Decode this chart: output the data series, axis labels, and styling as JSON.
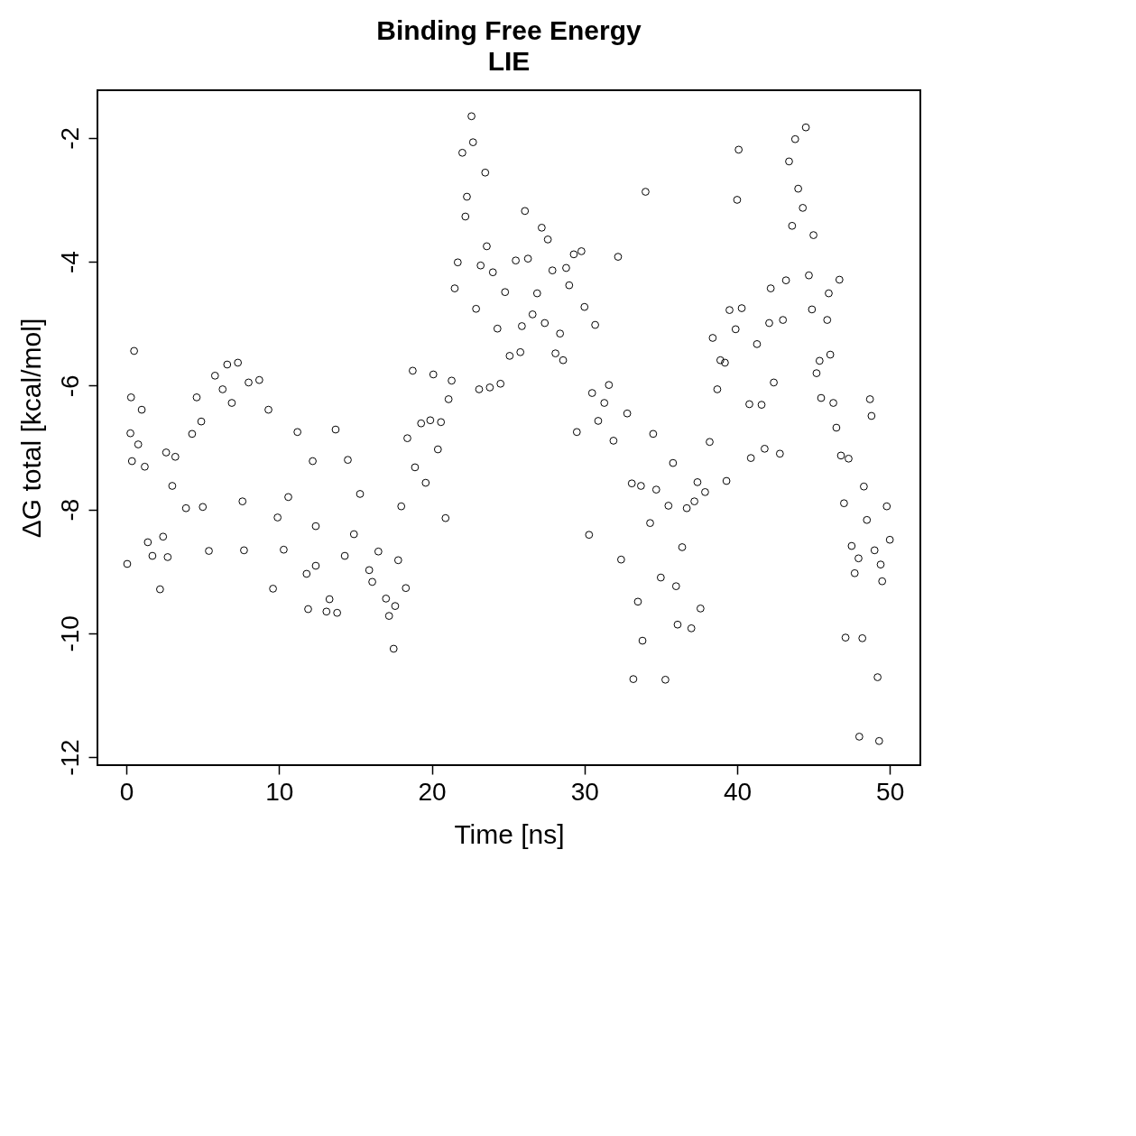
{
  "chart_data": {
    "type": "scatter",
    "title": "Binding Free Energy",
    "subtitle": "LIE",
    "xlabel": "Time [ns]",
    "ylabel": "ΔG total [kcal/mol]",
    "xlim": [
      -1.9,
      52
    ],
    "ylim": [
      -12.13,
      -1.23
    ],
    "xticks": [
      0,
      10,
      20,
      30,
      40,
      50
    ],
    "yticks": [
      -12,
      -10,
      -8,
      -6,
      -4,
      -2
    ],
    "grid": false,
    "marker": "circle",
    "legend": false,
    "series": [
      {
        "color": "#000000",
        "x": [
          0.05,
          0.26,
          0.3,
          0.5,
          0.36,
          0.77,
          1.0,
          1.2,
          1.4,
          1.7,
          2.2,
          2.4,
          2.7,
          2.6,
          3.0,
          3.2,
          3.9,
          4.3,
          4.6,
          4.9,
          5.0,
          5.4,
          5.8,
          6.3,
          6.6,
          6.9,
          7.3,
          7.6,
          7.7,
          8.0,
          8.7,
          9.3,
          9.6,
          9.9,
          10.3,
          10.6,
          11.2,
          11.8,
          11.9,
          12.2,
          12.4,
          12.4,
          13.1,
          13.3,
          13.7,
          13.8,
          14.3,
          14.5,
          14.9,
          15.3,
          15.9,
          16.1,
          16.5,
          17.0,
          17.2,
          17.5,
          17.6,
          17.8,
          18.0,
          18.3,
          18.4,
          18.75,
          18.9,
          19.3,
          19.6,
          19.9,
          20.1,
          20.4,
          20.6,
          20.9,
          21.1,
          21.3,
          21.5,
          21.7,
          22.0,
          22.2,
          22.3,
          22.6,
          22.7,
          22.9,
          23.1,
          23.2,
          23.5,
          23.6,
          23.8,
          24.0,
          24.3,
          24.5,
          24.8,
          25.1,
          25.5,
          25.8,
          25.9,
          26.1,
          26.3,
          26.6,
          26.9,
          27.2,
          27.4,
          27.6,
          27.9,
          28.1,
          28.4,
          28.6,
          28.8,
          29.0,
          29.3,
          29.5,
          29.8,
          30.0,
          30.3,
          30.5,
          30.7,
          30.9,
          31.3,
          31.6,
          31.9,
          32.2,
          32.4,
          32.8,
          33.1,
          33.2,
          33.5,
          33.7,
          33.8,
          34.0,
          34.3,
          34.5,
          34.7,
          35.0,
          35.3,
          35.5,
          35.8,
          36.0,
          36.1,
          36.4,
          36.7,
          37.0,
          37.2,
          37.4,
          37.6,
          37.9,
          38.2,
          38.4,
          38.7,
          38.9,
          39.2,
          39.3,
          39.5,
          39.9,
          40.0,
          40.1,
          40.3,
          40.8,
          40.9,
          41.3,
          41.6,
          41.8,
          42.1,
          42.2,
          42.4,
          42.8,
          43.0,
          43.2,
          43.4,
          43.6,
          43.8,
          44.0,
          44.3,
          44.5,
          44.7,
          44.9,
          45.0,
          45.2,
          45.4,
          45.5,
          45.9,
          46.0,
          46.1,
          46.3,
          46.5,
          46.7,
          46.8,
          47.0,
          47.1,
          47.3,
          47.5,
          47.7,
          47.95,
          48.0,
          48.2,
          48.3,
          48.5,
          48.7,
          48.8,
          49.0,
          49.2,
          49.3,
          49.4,
          49.5,
          49.8,
          50.0
        ],
        "values": [
          -8.88,
          -6.77,
          -6.19,
          -5.44,
          -7.22,
          -6.95,
          -6.39,
          -7.31,
          -8.53,
          -8.75,
          -9.29,
          -8.44,
          -8.77,
          -7.08,
          -7.62,
          -7.15,
          -7.98,
          -6.78,
          -6.19,
          -6.58,
          -7.96,
          -8.67,
          -5.84,
          -6.06,
          -5.66,
          -6.28,
          -5.63,
          -7.87,
          -8.66,
          -5.95,
          -5.91,
          -6.39,
          -9.28,
          -8.13,
          -8.65,
          -7.8,
          -6.75,
          -9.04,
          -9.61,
          -7.22,
          -8.27,
          -8.91,
          -9.65,
          -9.45,
          -6.71,
          -9.67,
          -8.75,
          -7.2,
          -8.4,
          -7.75,
          -8.98,
          -9.17,
          -8.68,
          -9.44,
          -9.72,
          -10.25,
          -9.56,
          -8.82,
          -7.95,
          -9.27,
          -6.85,
          -5.76,
          -7.32,
          -6.61,
          -7.57,
          -6.56,
          -5.82,
          -7.03,
          -6.59,
          -8.14,
          -6.22,
          -5.92,
          -4.43,
          -4.01,
          -2.24,
          -3.27,
          -2.95,
          -1.65,
          -2.07,
          -4.76,
          -6.06,
          -4.06,
          -2.56,
          -3.75,
          -6.03,
          -4.17,
          -5.08,
          -5.97,
          -4.49,
          -5.52,
          -3.98,
          -5.46,
          -5.04,
          -3.18,
          -3.95,
          -4.85,
          -4.51,
          -3.45,
          -4.99,
          -3.64,
          -4.14,
          -5.48,
          -5.16,
          -5.59,
          -4.1,
          -4.38,
          -3.88,
          -6.75,
          -3.83,
          -4.73,
          -8.41,
          -6.12,
          -5.02,
          -6.57,
          -6.28,
          -5.99,
          -6.89,
          -3.92,
          -8.81,
          -6.45,
          -7.58,
          -10.74,
          -9.49,
          -7.62,
          -10.12,
          -2.87,
          -8.22,
          -6.78,
          -7.68,
          -9.1,
          -10.75,
          -7.94,
          -7.25,
          -9.24,
          -9.86,
          -8.61,
          -7.98,
          -9.92,
          -7.87,
          -7.56,
          -9.6,
          -7.72,
          -6.91,
          -5.23,
          -6.06,
          -5.59,
          -5.63,
          -7.54,
          -4.78,
          -5.09,
          -3.0,
          -2.19,
          -4.75,
          -6.3,
          -7.17,
          -5.33,
          -6.31,
          -7.02,
          -4.99,
          -4.43,
          -5.95,
          -7.1,
          -4.94,
          -4.3,
          -2.38,
          -3.42,
          -2.02,
          -2.82,
          -3.13,
          -1.83,
          -4.22,
          -4.77,
          -3.57,
          -5.8,
          -5.6,
          -6.2,
          -4.94,
          -4.51,
          -5.5,
          -6.28,
          -6.68,
          -4.29,
          -7.13,
          -7.9,
          -10.07,
          -7.18,
          -8.59,
          -9.03,
          -8.79,
          -11.67,
          -10.08,
          -7.63,
          -8.17,
          -6.22,
          -6.49,
          -8.66,
          -10.71,
          -11.74,
          -8.89,
          -9.16,
          -7.95,
          -8.49
        ]
      }
    ]
  }
}
